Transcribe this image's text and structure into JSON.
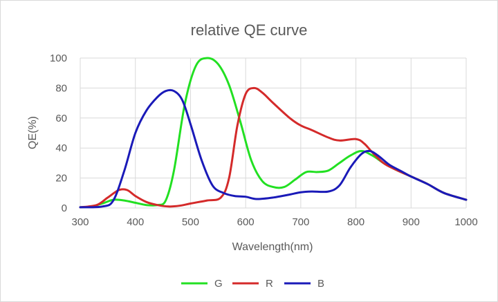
{
  "chart_data": {
    "type": "line",
    "title": "relative QE curve",
    "xlabel": "Wavelength(nm)",
    "ylabel": "QE(%)",
    "xlim": [
      300,
      1000
    ],
    "ylim": [
      0,
      100
    ],
    "x_ticks": [
      "300",
      "400",
      "500",
      "600",
      "700",
      "800",
      "900",
      "1000"
    ],
    "y_ticks": [
      "0",
      "20",
      "40",
      "60",
      "80",
      "100"
    ],
    "grid": true,
    "legend_position": "bottom",
    "series": [
      {
        "name": "G",
        "color": "#22e022",
        "points": [
          [
            300,
            0.5
          ],
          [
            320,
            1
          ],
          [
            340,
            3
          ],
          [
            360,
            5.5
          ],
          [
            380,
            5
          ],
          [
            400,
            3.5
          ],
          [
            420,
            2
          ],
          [
            440,
            2
          ],
          [
            455,
            5
          ],
          [
            470,
            25
          ],
          [
            490,
            70
          ],
          [
            510,
            95
          ],
          [
            530,
            100
          ],
          [
            550,
            96
          ],
          [
            570,
            82
          ],
          [
            590,
            58
          ],
          [
            610,
            32
          ],
          [
            630,
            18
          ],
          [
            650,
            14
          ],
          [
            670,
            14
          ],
          [
            690,
            19
          ],
          [
            710,
            24
          ],
          [
            730,
            24
          ],
          [
            750,
            25
          ],
          [
            770,
            30
          ],
          [
            790,
            35
          ],
          [
            810,
            38
          ],
          [
            830,
            35
          ],
          [
            850,
            30
          ],
          [
            870,
            26
          ],
          [
            900,
            21
          ],
          [
            930,
            16
          ],
          [
            960,
            10
          ],
          [
            1000,
            5.5
          ]
        ]
      },
      {
        "name": "R",
        "color": "#d42a2a",
        "points": [
          [
            300,
            0.5
          ],
          [
            330,
            2
          ],
          [
            350,
            7
          ],
          [
            370,
            12
          ],
          [
            385,
            12
          ],
          [
            400,
            8
          ],
          [
            420,
            4
          ],
          [
            440,
            2
          ],
          [
            460,
            1
          ],
          [
            480,
            1.5
          ],
          [
            500,
            3
          ],
          [
            530,
            5
          ],
          [
            555,
            7
          ],
          [
            570,
            20
          ],
          [
            585,
            55
          ],
          [
            600,
            76
          ],
          [
            615,
            80
          ],
          [
            630,
            77
          ],
          [
            650,
            70
          ],
          [
            680,
            60
          ],
          [
            700,
            55
          ],
          [
            720,
            52
          ],
          [
            750,
            47
          ],
          [
            770,
            45
          ],
          [
            800,
            46
          ],
          [
            815,
            43
          ],
          [
            830,
            37
          ],
          [
            850,
            30
          ],
          [
            870,
            26
          ],
          [
            900,
            21
          ],
          [
            930,
            16
          ],
          [
            960,
            10
          ],
          [
            1000,
            5.5
          ]
        ]
      },
      {
        "name": "B",
        "color": "#1a1ab8",
        "points": [
          [
            300,
            0.5
          ],
          [
            340,
            1
          ],
          [
            360,
            5
          ],
          [
            380,
            25
          ],
          [
            400,
            50
          ],
          [
            420,
            65
          ],
          [
            440,
            74
          ],
          [
            455,
            78
          ],
          [
            470,
            78
          ],
          [
            485,
            72
          ],
          [
            500,
            56
          ],
          [
            520,
            32
          ],
          [
            540,
            15
          ],
          [
            560,
            10
          ],
          [
            580,
            8
          ],
          [
            600,
            7.5
          ],
          [
            620,
            6
          ],
          [
            650,
            7
          ],
          [
            680,
            9
          ],
          [
            700,
            10.5
          ],
          [
            720,
            11
          ],
          [
            750,
            11
          ],
          [
            770,
            15
          ],
          [
            790,
            27
          ],
          [
            810,
            36
          ],
          [
            825,
            38
          ],
          [
            840,
            35
          ],
          [
            860,
            29
          ],
          [
            880,
            25
          ],
          [
            900,
            21
          ],
          [
            930,
            16
          ],
          [
            960,
            10
          ],
          [
            1000,
            5.5
          ]
        ]
      }
    ]
  }
}
